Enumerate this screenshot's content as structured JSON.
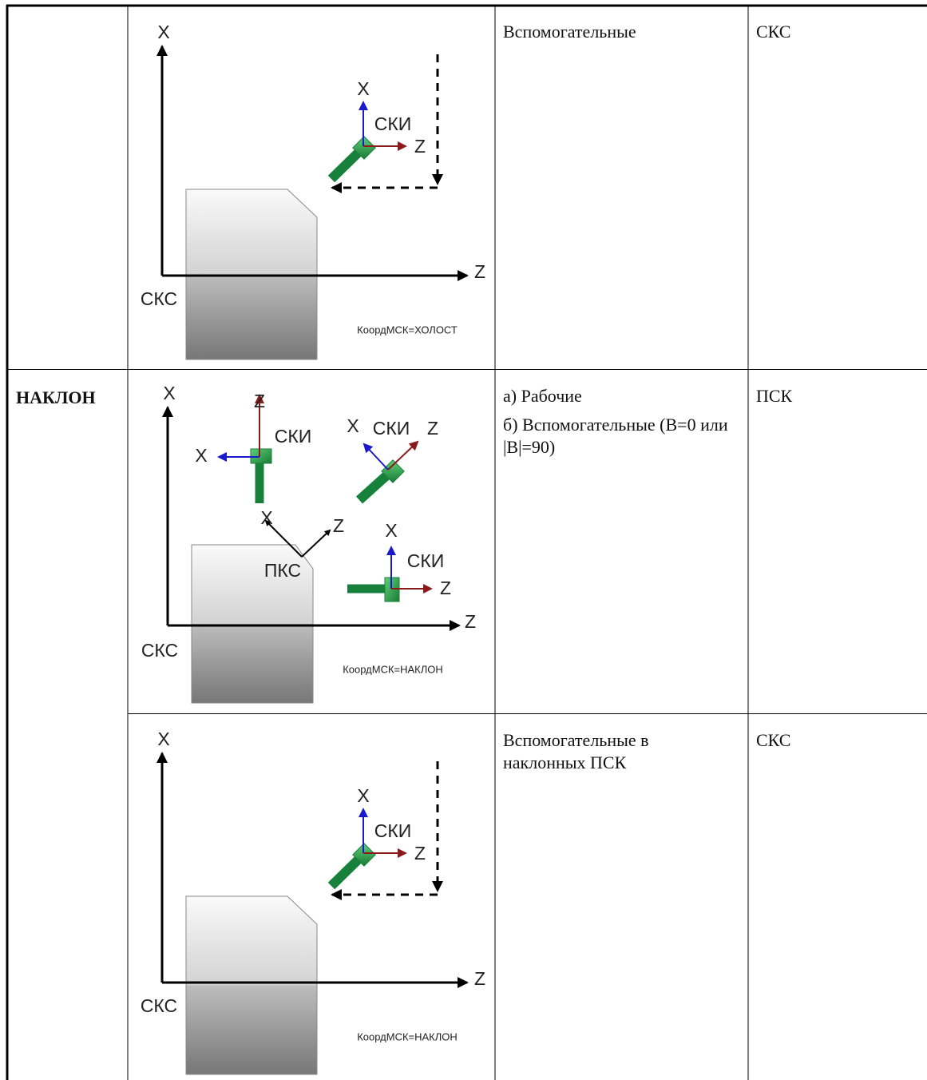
{
  "table": {
    "rows": [
      {
        "figure": {
          "labels": [
            "X",
            "Z",
            "СКС",
            "X",
            "СКИ",
            "Z"
          ],
          "caption": "КоордМСК=ХОЛОСТ"
        },
        "purpose": [
          "Вспомогательные"
        ],
        "system": "СКС"
      },
      {
        "mode": "НАКЛОН",
        "figure": {
          "labels": [
            "X",
            "Z",
            "СКС",
            "Z",
            "СКИ",
            "X",
            "X",
            "СКИ",
            "Z",
            "X",
            "Z",
            "ПКС",
            "X",
            "СКИ",
            "Z"
          ],
          "caption": "КоордМСК=НАКЛОН"
        },
        "purpose": [
          "а) Рабочие",
          "б) Вспомогательные (B=0 или |B|=90)"
        ],
        "system": "ПСК"
      },
      {
        "figure": {
          "labels": [
            "X",
            "Z",
            "СКС",
            "X",
            "СКИ",
            "Z"
          ],
          "caption": "КоордМСК=НАКЛОН"
        },
        "purpose": [
          "Вспомогательные в наклонных ПСК"
        ],
        "system": "СКС"
      }
    ]
  }
}
